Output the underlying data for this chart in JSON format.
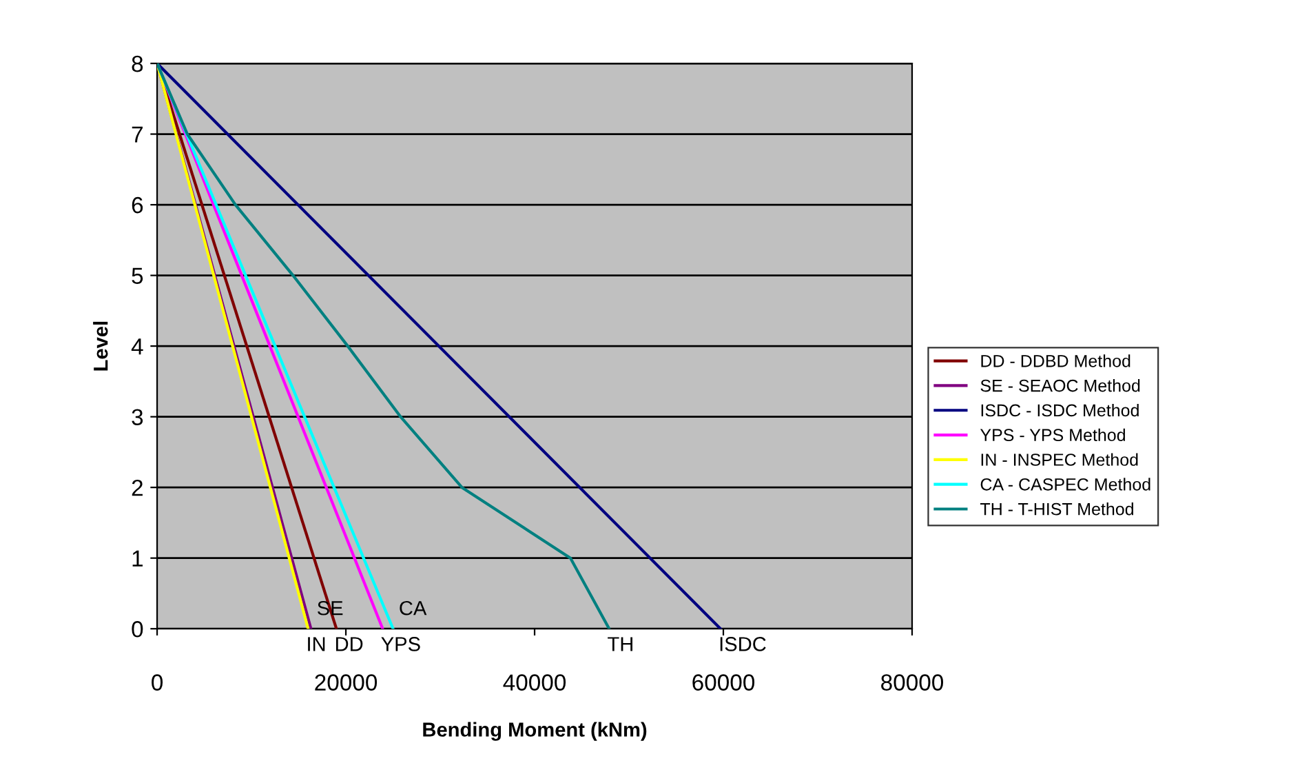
{
  "chart_data": {
    "type": "line",
    "xlabel": "Bending Moment (kNm)",
    "ylabel": "Level",
    "xlim": [
      0,
      80000
    ],
    "xticks": [
      0,
      20000,
      40000,
      60000,
      80000
    ],
    "ylim": [
      0,
      8
    ],
    "yticks": [
      0,
      1,
      2,
      3,
      4,
      5,
      6,
      7,
      8
    ],
    "grid": "y",
    "legend": "right",
    "marker": "none",
    "line_style": "solid",
    "series": [
      {
        "name": "DD - DDBD Method",
        "color": "#800000",
        "x": [
          0,
          19000
        ],
        "values": [
          8,
          0
        ]
      },
      {
        "name": "SE - SEAOC Method",
        "color": "#800080",
        "x": [
          0,
          16300
        ],
        "values": [
          8,
          0
        ]
      },
      {
        "name": "ISDC - ISDC Method",
        "color": "#000080",
        "x": [
          0,
          59700
        ],
        "values": [
          8,
          0
        ]
      },
      {
        "name": "YPS - YPS Method",
        "color": "#ff00ff",
        "x": [
          0,
          23900
        ],
        "values": [
          8,
          0
        ]
      },
      {
        "name": "IN - INSPEC Method",
        "color": "#ffff00",
        "x": [
          0,
          16000
        ],
        "values": [
          8,
          0
        ]
      },
      {
        "name": "CA - CASPEC Method",
        "color": "#00ffff",
        "x": [
          0,
          25000
        ],
        "values": [
          8,
          0
        ]
      },
      {
        "name": "TH - T-HIST Method",
        "color": "#008080",
        "x": [
          0,
          3200,
          8300,
          14400,
          20200,
          25800,
          32300,
          43800,
          47900
        ],
        "values": [
          8,
          7,
          6,
          5,
          4,
          3,
          2,
          1,
          0
        ]
      }
    ],
    "annotations": [
      {
        "text": "SE",
        "x": 16300,
        "y": 0
      },
      {
        "text": "CA",
        "x": 25000,
        "y": 0
      },
      {
        "text": "IN",
        "x": 16000,
        "y": 0
      },
      {
        "text": "DD",
        "x": 19000,
        "y": 0
      },
      {
        "text": "YPS",
        "x": 23900,
        "y": 0
      },
      {
        "text": "TH",
        "x": 47900,
        "y": 0
      },
      {
        "text": "ISDC",
        "x": 59700,
        "y": 0
      }
    ]
  }
}
